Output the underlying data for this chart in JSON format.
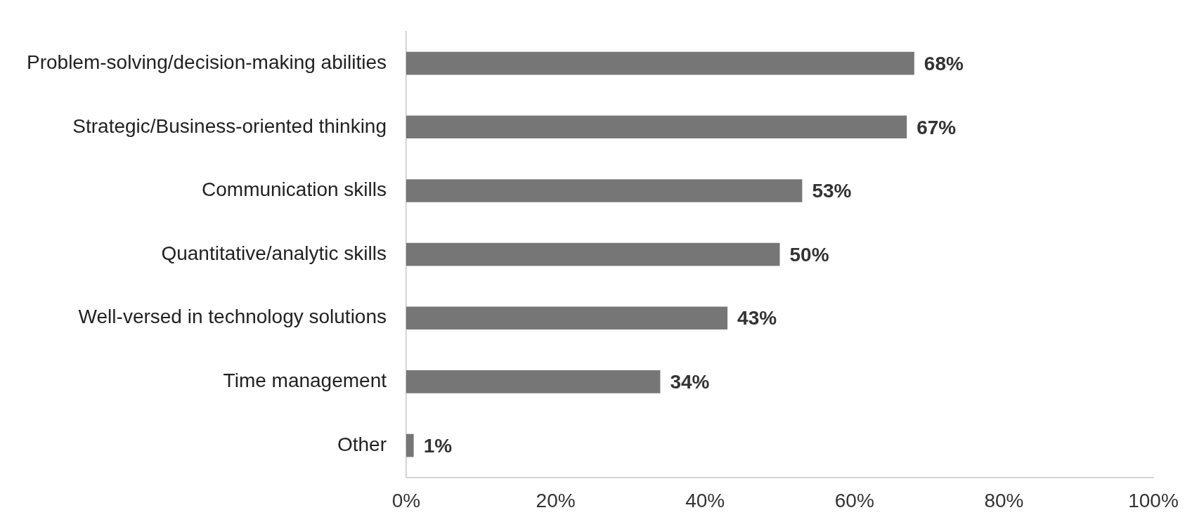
{
  "chart_data": {
    "type": "bar",
    "orientation": "horizontal",
    "categories": [
      "Problem-solving/decision-making abilities",
      "Strategic/Business-oriented thinking",
      "Communication skills",
      "Quantitative/analytic skills",
      "Well-versed in technology solutions",
      "Time management",
      "Other"
    ],
    "values": [
      68,
      67,
      53,
      50,
      43,
      34,
      1
    ],
    "value_labels": [
      "68%",
      "67%",
      "53%",
      "50%",
      "43%",
      "34%",
      "1%"
    ],
    "color": "#767676",
    "xlim": [
      0,
      100
    ],
    "xticks": [
      {
        "value": 0,
        "label": "0%"
      },
      {
        "value": 20,
        "label": "20%"
      },
      {
        "value": 40,
        "label": "40%"
      },
      {
        "value": 60,
        "label": "60%"
      },
      {
        "value": 80,
        "label": "80%"
      },
      {
        "value": 100,
        "label": "100%"
      }
    ],
    "grid": false,
    "legend": false
  }
}
